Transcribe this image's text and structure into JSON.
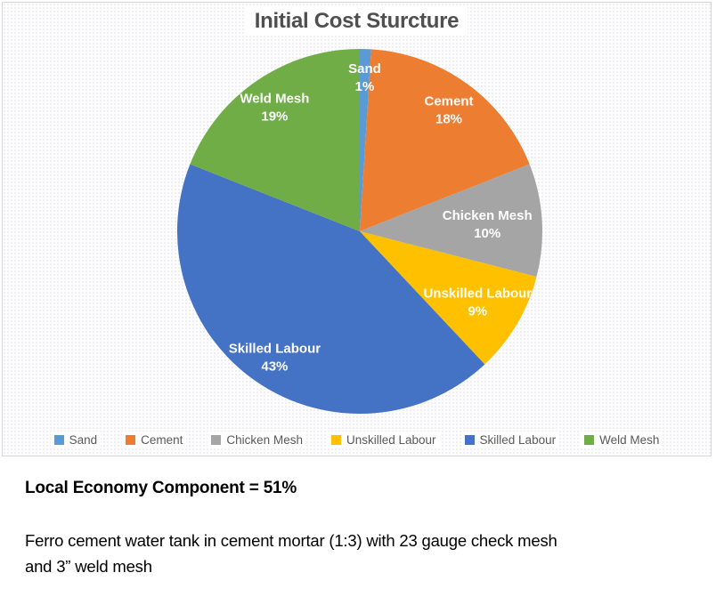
{
  "chart_data": {
    "type": "pie",
    "title": "Initial Cost Sturcture",
    "categories": [
      "Sand",
      "Cement",
      "Chicken Mesh",
      "Unskilled Labour",
      "Skilled Labour",
      "Weld Mesh"
    ],
    "values": [
      1,
      18,
      10,
      9,
      43,
      19
    ],
    "colors": [
      "#5B9BD5",
      "#ED7D31",
      "#A5A5A5",
      "#FFC000",
      "#4472C4",
      "#70AD47"
    ],
    "data_labels": "name+percent",
    "label_radius_frac": [
      0.85,
      0.83,
      0.7,
      0.75,
      0.83,
      0.83
    ],
    "legend_position": "bottom",
    "start_angle_deg": 0,
    "direction": "clockwise",
    "label_text_color": "#ffffff",
    "title_color": "#4f4f4f",
    "legend_text_color": "#595959"
  },
  "caption": {
    "heading": "Local Economy Component = 51%",
    "body_lines": [
      "Ferro cement water tank in cement mortar (1:3) with 23 gauge check mesh",
      "and 3” weld mesh"
    ]
  }
}
